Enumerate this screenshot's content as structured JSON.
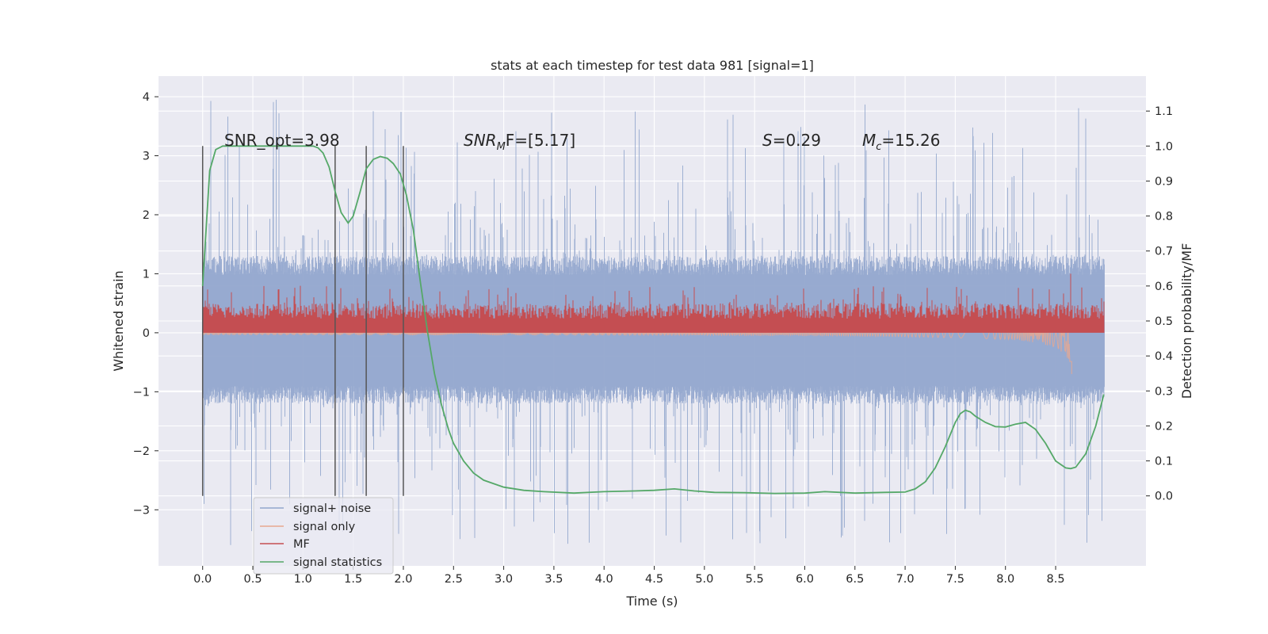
{
  "chart_data": {
    "type": "line",
    "title": "stats at each timestep for test data 981 [signal=1]",
    "xlabel": "Time (s)",
    "ylabel": "Whitened strain",
    "y2label": "Detection probability/MF",
    "xlim": [
      -0.44,
      9.4
    ],
    "ylim": [
      -3.95,
      4.35
    ],
    "y2lim": [
      -0.2,
      1.2
    ],
    "x_ticks": [
      "0.0",
      "0.5",
      "1.0",
      "1.5",
      "2.0",
      "2.5",
      "3.0",
      "3.5",
      "4.0",
      "4.5",
      "5.0",
      "5.5",
      "6.0",
      "6.5",
      "7.0",
      "7.5",
      "8.0",
      "8.5"
    ],
    "y_ticks": [
      "4",
      "3",
      "2",
      "1",
      "0",
      "−1",
      "−2",
      "−3"
    ],
    "y2_ticks": [
      "1.1",
      "1.0",
      "0.9",
      "0.8",
      "0.7",
      "0.6",
      "0.5",
      "0.4",
      "0.3",
      "0.2",
      "0.1",
      "0.0"
    ],
    "grid": true,
    "legend": "bottom-left",
    "annotations": {
      "snr_opt": "SNR_opt=3.98",
      "snr_mf": "SNR",
      "snr_mf_sub": "M",
      "snr_mf_tail": "F=[5.17]",
      "s_stat": "S",
      "s_tail": "=0.29",
      "mc": "M",
      "mc_sub": "c",
      "mc_tail": "=15.26"
    },
    "vertical_lines_x": [
      0.0,
      1.32,
      1.63,
      2.0
    ],
    "series": [
      {
        "name": "signal+ noise",
        "color": "#92a6cd",
        "envelope_upper": 1.3,
        "envelope_lower": -1.2,
        "peak_max": 4.0,
        "peak_min": -3.6,
        "x_range": [
          0.0,
          8.98
        ]
      },
      {
        "name": "signal only",
        "color": "#e7a890",
        "x_range": [
          0.0,
          8.66
        ],
        "final_min": -0.7
      },
      {
        "name": "MF",
        "color": "#c44e52",
        "baseline": 0.1,
        "band_upper": 0.5,
        "spike_x": 8.65,
        "spike_y": 1.0
      },
      {
        "name": "signal statistics",
        "color": "#55a868",
        "x": [
          0.0,
          0.07,
          0.13,
          0.2,
          0.3,
          0.5,
          0.8,
          1.0,
          1.1,
          1.15,
          1.2,
          1.26,
          1.32,
          1.38,
          1.45,
          1.5,
          1.57,
          1.63,
          1.7,
          1.77,
          1.84,
          1.9,
          1.97,
          2.03,
          2.1,
          2.17,
          2.24,
          2.31,
          2.38,
          2.45,
          2.5,
          2.6,
          2.7,
          2.8,
          3.0,
          3.2,
          3.4,
          3.7,
          4.0,
          4.3,
          4.5,
          4.7,
          4.9,
          5.1,
          5.4,
          5.7,
          6.0,
          6.2,
          6.5,
          6.8,
          7.0,
          7.1,
          7.2,
          7.3,
          7.4,
          7.5,
          7.55,
          7.6,
          7.65,
          7.7,
          7.8,
          7.9,
          8.0,
          8.1,
          8.2,
          8.3,
          8.4,
          8.5,
          8.6,
          8.65,
          8.7,
          8.8,
          8.9,
          8.98
        ],
        "values": [
          0.6,
          0.93,
          0.99,
          1.0,
          1.0,
          1.0,
          1.0,
          1.0,
          1.0,
          0.995,
          0.98,
          0.94,
          0.87,
          0.81,
          0.78,
          0.8,
          0.87,
          0.935,
          0.962,
          0.97,
          0.965,
          0.95,
          0.92,
          0.86,
          0.76,
          0.61,
          0.47,
          0.35,
          0.26,
          0.19,
          0.15,
          0.1,
          0.065,
          0.045,
          0.025,
          0.016,
          0.012,
          0.008,
          0.012,
          0.014,
          0.016,
          0.02,
          0.014,
          0.01,
          0.009,
          0.007,
          0.008,
          0.012,
          0.008,
          0.01,
          0.011,
          0.02,
          0.04,
          0.08,
          0.14,
          0.21,
          0.235,
          0.245,
          0.24,
          0.228,
          0.21,
          0.198,
          0.197,
          0.205,
          0.21,
          0.19,
          0.15,
          0.1,
          0.08,
          0.078,
          0.082,
          0.12,
          0.2,
          0.29
        ]
      }
    ]
  }
}
